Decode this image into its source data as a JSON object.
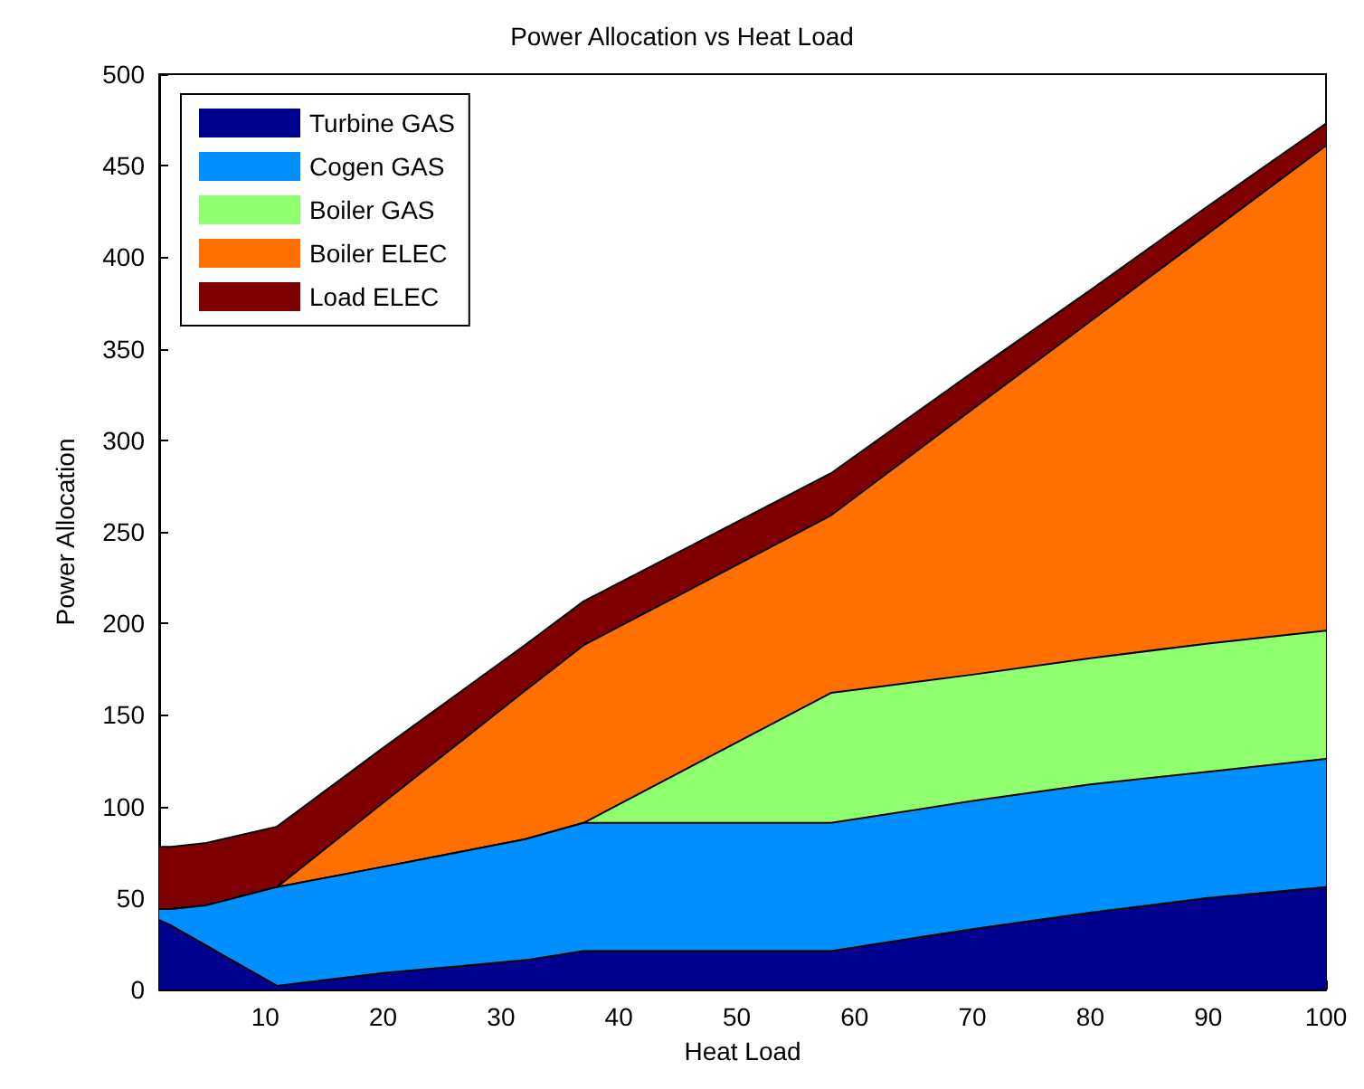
{
  "chart_data": {
    "type": "area",
    "stacked": true,
    "title": "Power Allocation vs Heat Load",
    "xlabel": "Heat Load",
    "ylabel": "Power Allocation",
    "x": [
      1,
      2,
      5,
      11,
      20,
      32,
      37,
      58,
      70,
      80,
      90,
      100
    ],
    "series": [
      {
        "name": "Turbine GAS",
        "color": "#00008f",
        "values": [
          38,
          35,
          24,
          2,
          9,
          16,
          21,
          21,
          33,
          42,
          50,
          56
        ]
      },
      {
        "name": "Cogen GAS",
        "color": "#008fff",
        "values": [
          6,
          9,
          22,
          54,
          58,
          66,
          70,
          70,
          70,
          70,
          69,
          70
        ]
      },
      {
        "name": "Boiler GAS",
        "color": "#8fff70",
        "values": [
          0,
          0,
          0,
          0,
          0,
          0,
          0,
          71,
          69,
          69,
          70,
          70
        ]
      },
      {
        "name": "Boiler ELEC",
        "color": "#ff7000",
        "values": [
          0,
          0,
          0,
          0,
          35,
          81,
          97,
          97,
          145,
          184,
          224,
          265
        ]
      },
      {
        "name": "Load ELEC",
        "color": "#7f0000",
        "values": [
          34,
          34,
          34,
          33,
          30,
          25,
          24,
          23,
          20,
          17,
          15,
          12
        ]
      }
    ],
    "xlim": [
      1,
      100
    ],
    "xticks": [
      10,
      20,
      30,
      40,
      50,
      60,
      70,
      80,
      90,
      100
    ],
    "ylim": [
      0,
      500
    ],
    "yticks": [
      0,
      50,
      100,
      150,
      200,
      250,
      300,
      350,
      400,
      450,
      500
    ],
    "grid": false,
    "legend": "top left",
    "marker": "none"
  }
}
